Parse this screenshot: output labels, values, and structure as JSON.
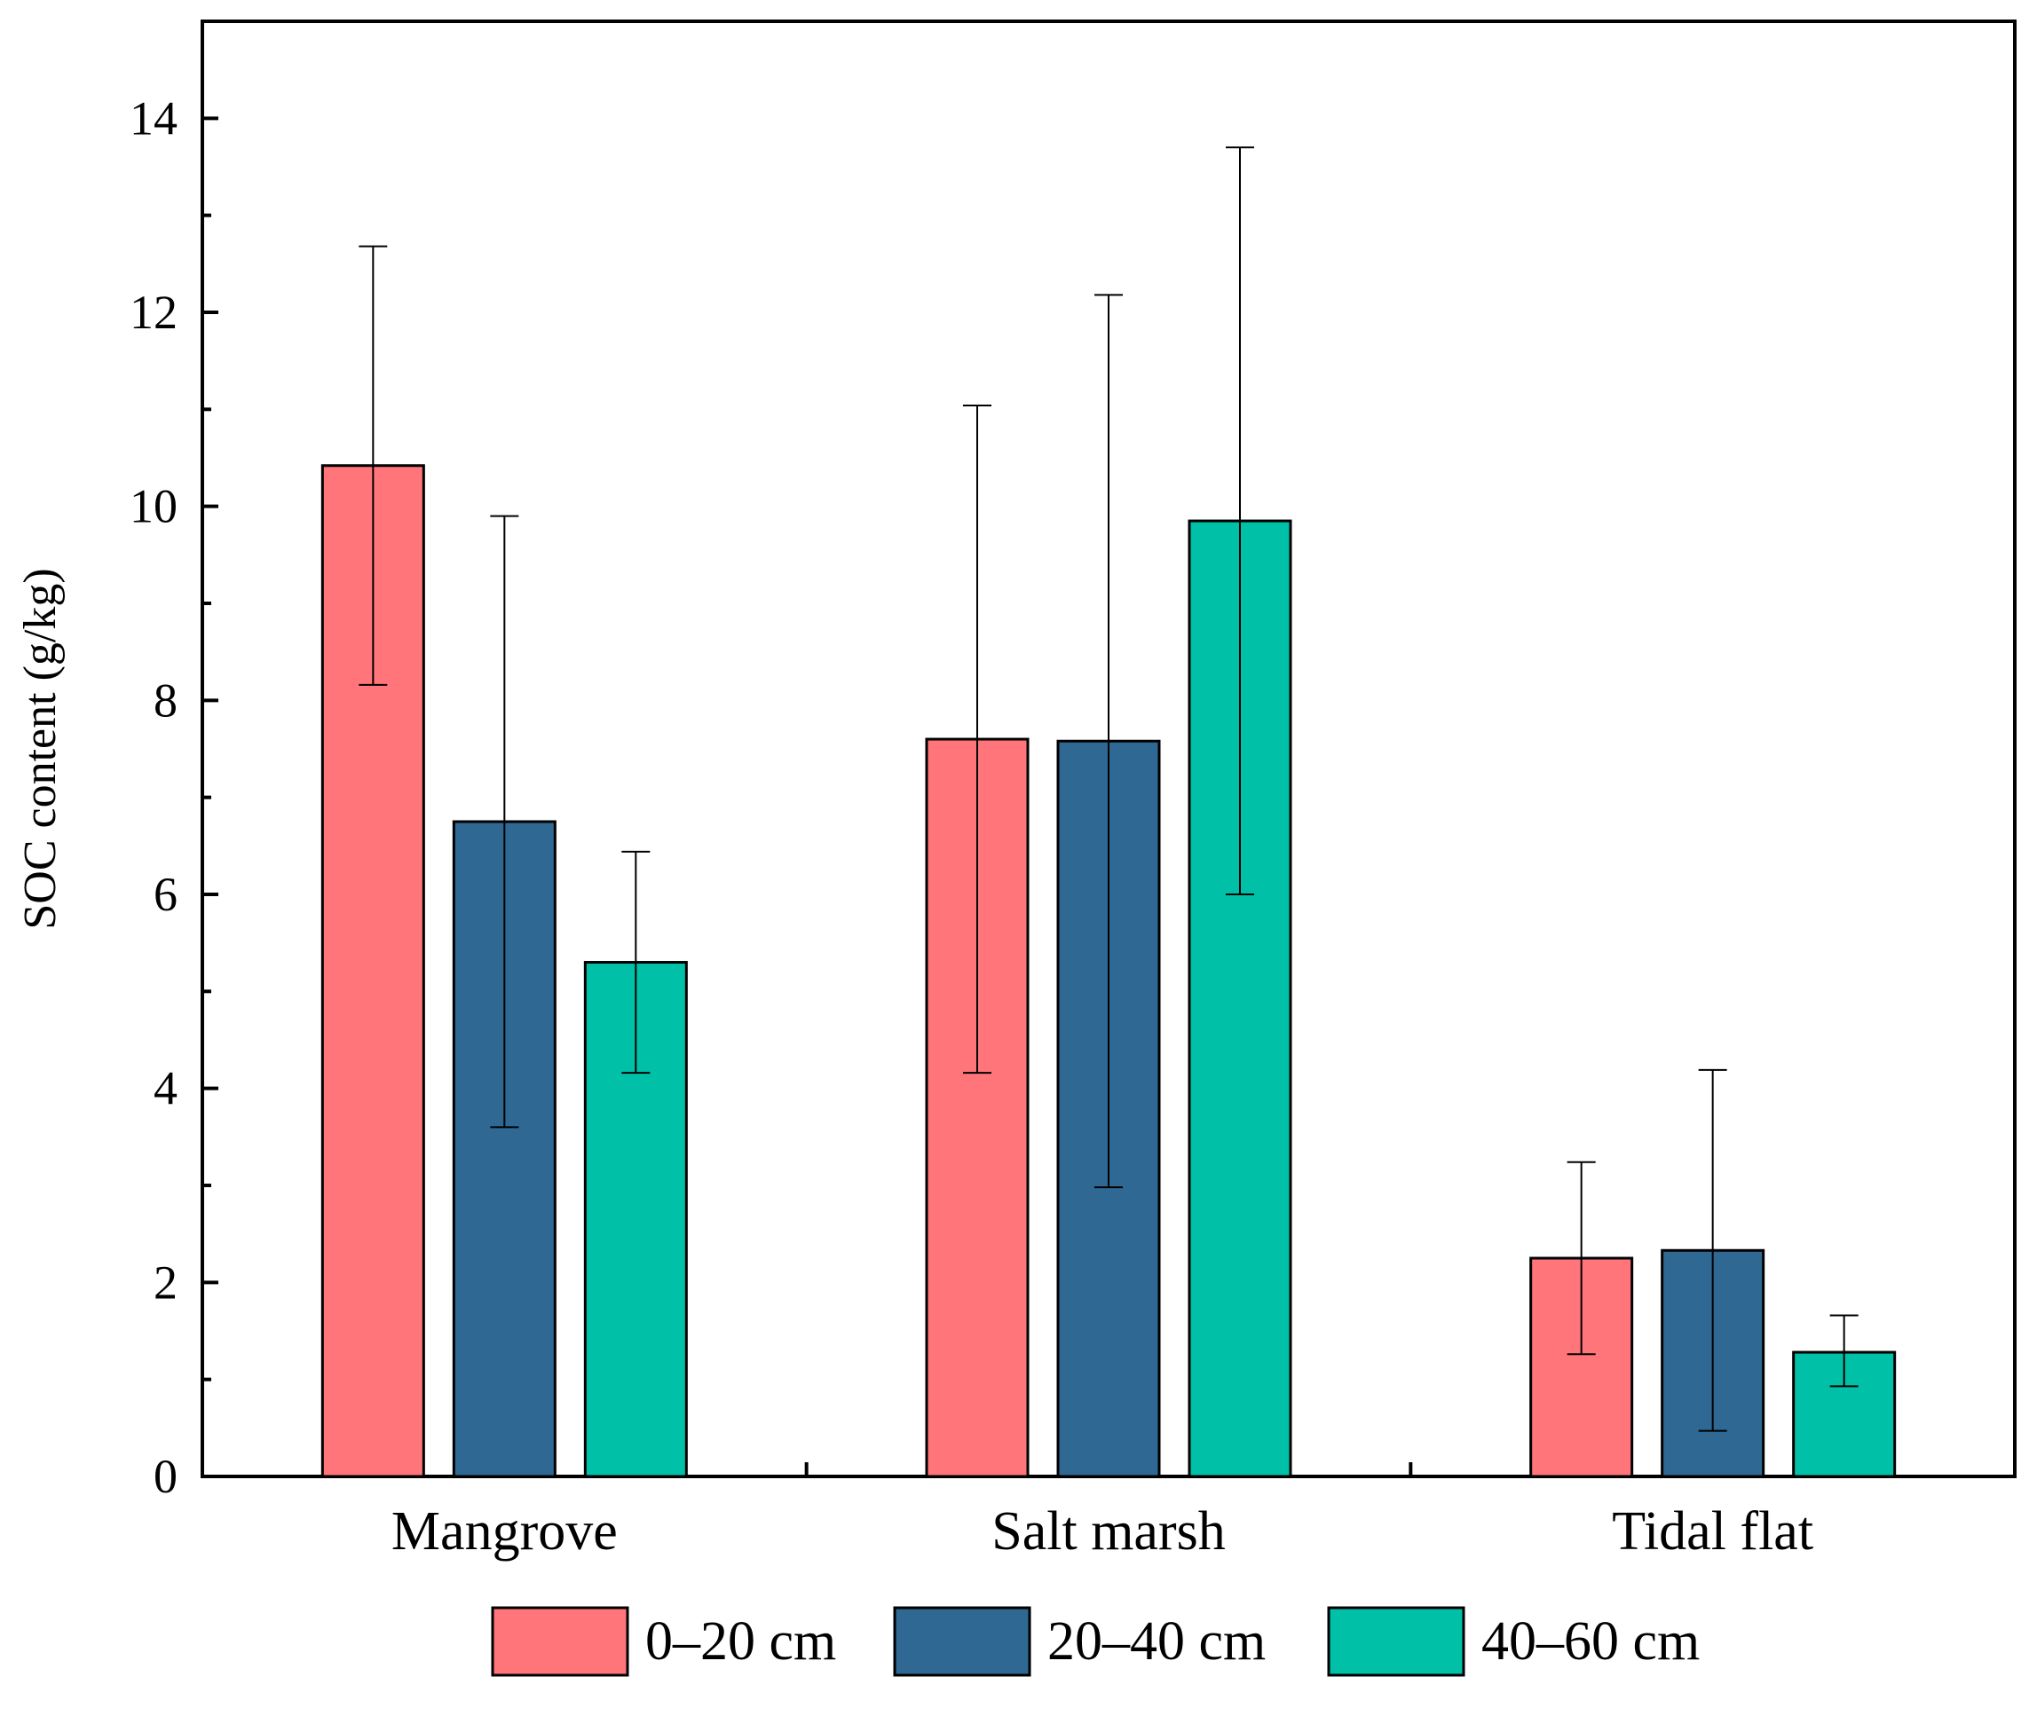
{
  "chart_data": {
    "type": "bar",
    "title": "",
    "xlabel": "",
    "ylabel": "SOC content (g/kg)",
    "ylim": [
      0,
      15
    ],
    "yticks": [
      0,
      2,
      4,
      6,
      8,
      10,
      12,
      14
    ],
    "ytick_labels": [
      "0",
      "2",
      "4",
      "6",
      "8",
      "10",
      "12",
      "14"
    ],
    "categories": [
      "Mangrove",
      "Salt marsh",
      "Tidal flat"
    ],
    "series": [
      {
        "name": "0–20 cm",
        "color": "#ff7579",
        "values": [
          10.42,
          7.6,
          2.25
        ],
        "err_low": [
          8.16,
          4.16,
          1.26
        ],
        "err_high": [
          12.68,
          11.04,
          3.24
        ]
      },
      {
        "name": "20–40 cm",
        "color": "#2e6893",
        "values": [
          6.75,
          7.58,
          2.33
        ],
        "err_low": [
          3.6,
          2.98,
          0.47
        ],
        "err_high": [
          9.9,
          12.18,
          4.19
        ]
      },
      {
        "name": "40–60 cm",
        "color": "#00c0a8",
        "values": [
          5.3,
          9.85,
          1.28
        ],
        "err_low": [
          4.16,
          6.0,
          0.93
        ],
        "err_high": [
          6.44,
          13.7,
          1.66
        ]
      }
    ],
    "grid": false,
    "legend_position": "bottom"
  }
}
